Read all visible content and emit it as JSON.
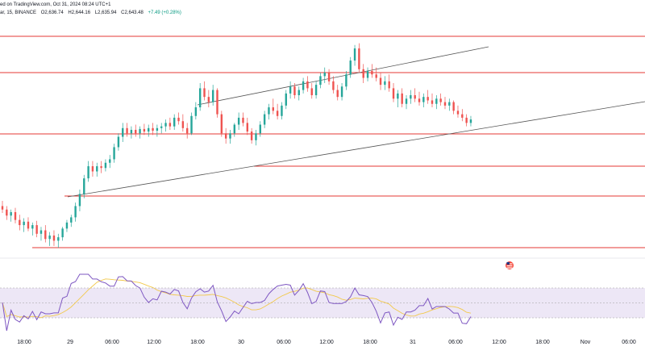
{
  "header": {
    "published_text": "ed on TradingView.com, Oct 31, 2024 08:24 UTC+1",
    "symbol_text": "ar, 15, BINANCE",
    "open": "O2,636.74",
    "high": "H2,644.16",
    "low": "L2,635.94",
    "close": "C2,643.48",
    "change": "+7.49 (+0.28%)"
  },
  "colors": {
    "up": "#26a69a",
    "down": "#ef5350",
    "level_line": "#e53935",
    "trend_line": "#555555",
    "rsi_line": "#7e57c2",
    "rsi_ma": "#f2c94c",
    "rsi_band": "#ede7f6"
  },
  "chart_data": {
    "type": "candlestick",
    "x_axis": {
      "tick_labels": [
        "18:00",
        "29",
        "06:00",
        "12:00",
        "18:00",
        "30",
        "06:00",
        "12:00",
        "18:00",
        "31",
        "06:00",
        "12:00",
        "18:00",
        "Nov",
        "06:00"
      ]
    },
    "candles_ohlc": [
      [
        2516,
        2522,
        2508,
        2512
      ],
      [
        2512,
        2516,
        2500,
        2505
      ],
      [
        2505,
        2512,
        2498,
        2509
      ],
      [
        2509,
        2514,
        2496,
        2500
      ],
      [
        2500,
        2506,
        2488,
        2494
      ],
      [
        2494,
        2502,
        2486,
        2498
      ],
      [
        2498,
        2503,
        2487,
        2490
      ],
      [
        2490,
        2497,
        2482,
        2494
      ],
      [
        2494,
        2499,
        2480,
        2484
      ],
      [
        2484,
        2492,
        2476,
        2488
      ],
      [
        2488,
        2494,
        2474,
        2478
      ],
      [
        2478,
        2486,
        2470,
        2482
      ],
      [
        2482,
        2488,
        2470,
        2476
      ],
      [
        2476,
        2484,
        2468,
        2480
      ],
      [
        2480,
        2492,
        2476,
        2490
      ],
      [
        2490,
        2500,
        2486,
        2497
      ],
      [
        2497,
        2506,
        2492,
        2503
      ],
      [
        2503,
        2520,
        2498,
        2516
      ],
      [
        2516,
        2535,
        2510,
        2530
      ],
      [
        2530,
        2552,
        2525,
        2548
      ],
      [
        2548,
        2568,
        2544,
        2562
      ],
      [
        2562,
        2568,
        2550,
        2556
      ],
      [
        2556,
        2566,
        2550,
        2562
      ],
      [
        2562,
        2568,
        2554,
        2560
      ],
      [
        2560,
        2570,
        2556,
        2566
      ],
      [
        2566,
        2575,
        2560,
        2570
      ],
      [
        2570,
        2588,
        2566,
        2584
      ],
      [
        2584,
        2600,
        2580,
        2596
      ],
      [
        2596,
        2612,
        2590,
        2606
      ],
      [
        2606,
        2612,
        2596,
        2600
      ],
      [
        2600,
        2608,
        2594,
        2604
      ],
      [
        2604,
        2610,
        2596,
        2600
      ],
      [
        2600,
        2608,
        2594,
        2605
      ],
      [
        2605,
        2611,
        2598,
        2602
      ],
      [
        2602,
        2610,
        2596,
        2606
      ],
      [
        2606,
        2612,
        2598,
        2603
      ],
      [
        2603,
        2610,
        2596,
        2606
      ],
      [
        2606,
        2612,
        2600,
        2608
      ],
      [
        2608,
        2616,
        2602,
        2612
      ],
      [
        2612,
        2618,
        2604,
        2608
      ],
      [
        2608,
        2622,
        2604,
        2618
      ],
      [
        2618,
        2624,
        2610,
        2614
      ],
      [
        2614,
        2622,
        2602,
        2606
      ],
      [
        2606,
        2612,
        2594,
        2600
      ],
      [
        2600,
        2624,
        2598,
        2620
      ],
      [
        2620,
        2636,
        2616,
        2630
      ],
      [
        2630,
        2658,
        2626,
        2652
      ],
      [
        2652,
        2660,
        2638,
        2642
      ],
      [
        2642,
        2650,
        2630,
        2636
      ],
      [
        2636,
        2656,
        2632,
        2650
      ],
      [
        2650,
        2652,
        2618,
        2622
      ],
      [
        2622,
        2626,
        2596,
        2600
      ],
      [
        2600,
        2606,
        2588,
        2594
      ],
      [
        2594,
        2604,
        2588,
        2600
      ],
      [
        2600,
        2612,
        2596,
        2610
      ],
      [
        2610,
        2624,
        2604,
        2618
      ],
      [
        2618,
        2624,
        2608,
        2612
      ],
      [
        2612,
        2618,
        2598,
        2602
      ],
      [
        2602,
        2606,
        2588,
        2592
      ],
      [
        2592,
        2604,
        2586,
        2600
      ],
      [
        2600,
        2614,
        2596,
        2610
      ],
      [
        2610,
        2626,
        2606,
        2622
      ],
      [
        2622,
        2634,
        2616,
        2630
      ],
      [
        2630,
        2640,
        2622,
        2626
      ],
      [
        2626,
        2634,
        2616,
        2620
      ],
      [
        2620,
        2636,
        2616,
        2632
      ],
      [
        2632,
        2650,
        2628,
        2646
      ],
      [
        2646,
        2660,
        2640,
        2654
      ],
      [
        2654,
        2658,
        2640,
        2644
      ],
      [
        2644,
        2654,
        2638,
        2650
      ],
      [
        2650,
        2664,
        2646,
        2660
      ],
      [
        2660,
        2666,
        2648,
        2652
      ],
      [
        2652,
        2658,
        2640,
        2644
      ],
      [
        2644,
        2660,
        2640,
        2656
      ],
      [
        2656,
        2670,
        2652,
        2666
      ],
      [
        2666,
        2676,
        2658,
        2670
      ],
      [
        2670,
        2674,
        2656,
        2660
      ],
      [
        2660,
        2666,
        2646,
        2650
      ],
      [
        2650,
        2656,
        2638,
        2642
      ],
      [
        2642,
        2658,
        2638,
        2654
      ],
      [
        2654,
        2672,
        2650,
        2668
      ],
      [
        2668,
        2688,
        2664,
        2684
      ],
      [
        2684,
        2702,
        2678,
        2698
      ],
      [
        2698,
        2704,
        2670,
        2674
      ],
      [
        2674,
        2680,
        2658,
        2664
      ],
      [
        2664,
        2676,
        2660,
        2672
      ],
      [
        2672,
        2680,
        2664,
        2668
      ],
      [
        2668,
        2676,
        2660,
        2664
      ],
      [
        2664,
        2670,
        2650,
        2656
      ],
      [
        2656,
        2666,
        2650,
        2660
      ],
      [
        2660,
        2668,
        2648,
        2652
      ],
      [
        2652,
        2658,
        2636,
        2640
      ],
      [
        2640,
        2650,
        2630,
        2646
      ],
      [
        2646,
        2652,
        2630,
        2634
      ],
      [
        2634,
        2644,
        2628,
        2640
      ],
      [
        2640,
        2650,
        2634,
        2644
      ],
      [
        2644,
        2652,
        2636,
        2640
      ],
      [
        2640,
        2648,
        2632,
        2636
      ],
      [
        2636,
        2646,
        2630,
        2642
      ],
      [
        2642,
        2650,
        2634,
        2638
      ],
      [
        2638,
        2646,
        2630,
        2634
      ],
      [
        2634,
        2644,
        2628,
        2640
      ],
      [
        2640,
        2646,
        2632,
        2636
      ],
      [
        2636,
        2642,
        2628,
        2632
      ],
      [
        2632,
        2640,
        2626,
        2636
      ],
      [
        2636,
        2638,
        2622,
        2626
      ],
      [
        2626,
        2632,
        2618,
        2622
      ],
      [
        2622,
        2628,
        2614,
        2618
      ],
      [
        2618,
        2622,
        2608,
        2612
      ],
      [
        2612,
        2620,
        2608,
        2616
      ]
    ]
  }
}
